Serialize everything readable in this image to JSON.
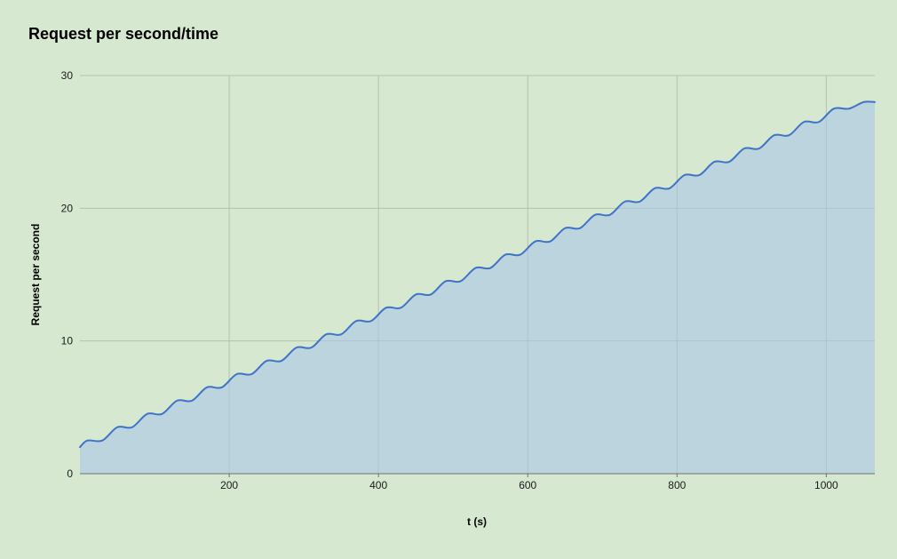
{
  "page": {
    "background": "#d7e8d0"
  },
  "chart_data": {
    "type": "area",
    "title": "Request per second/time",
    "xlabel": "t (s)",
    "ylabel": "Request per second",
    "xlim": [
      0,
      1065
    ],
    "ylim": [
      0,
      30
    ],
    "x_ticks": [
      200,
      400,
      600,
      800,
      1000
    ],
    "y_ticks": [
      0,
      10,
      20,
      30
    ],
    "grid": true,
    "legend": "none",
    "smooth": true,
    "line_color": "#3f73c8",
    "fill_color": "#a9c6e8",
    "fill_opacity": 0.6,
    "grid_color": "#b4bfb2",
    "axis_color": "#6f6f6f",
    "label_color": "#1a1a1a",
    "points": [
      [
        0,
        2
      ],
      [
        10,
        2.5
      ],
      [
        30,
        2.5
      ],
      [
        50,
        3.5
      ],
      [
        70,
        3.5
      ],
      [
        90,
        4.5
      ],
      [
        110,
        4.5
      ],
      [
        130,
        5.5
      ],
      [
        150,
        5.5
      ],
      [
        170,
        6.5
      ],
      [
        190,
        6.5
      ],
      [
        210,
        7.5
      ],
      [
        230,
        7.5
      ],
      [
        250,
        8.5
      ],
      [
        270,
        8.5
      ],
      [
        290,
        9.5
      ],
      [
        310,
        9.5
      ],
      [
        330,
        10.5
      ],
      [
        350,
        10.5
      ],
      [
        370,
        11.5
      ],
      [
        390,
        11.5
      ],
      [
        410,
        12.5
      ],
      [
        430,
        12.5
      ],
      [
        450,
        13.5
      ],
      [
        470,
        13.5
      ],
      [
        490,
        14.5
      ],
      [
        510,
        14.5
      ],
      [
        530,
        15.5
      ],
      [
        550,
        15.5
      ],
      [
        570,
        16.5
      ],
      [
        590,
        16.5
      ],
      [
        610,
        17.5
      ],
      [
        630,
        17.5
      ],
      [
        650,
        18.5
      ],
      [
        670,
        18.5
      ],
      [
        690,
        19.5
      ],
      [
        710,
        19.5
      ],
      [
        730,
        20.5
      ],
      [
        750,
        20.5
      ],
      [
        770,
        21.5
      ],
      [
        790,
        21.5
      ],
      [
        810,
        22.5
      ],
      [
        830,
        22.5
      ],
      [
        850,
        23.5
      ],
      [
        870,
        23.5
      ],
      [
        890,
        24.5
      ],
      [
        910,
        24.5
      ],
      [
        930,
        25.5
      ],
      [
        950,
        25.5
      ],
      [
        970,
        26.5
      ],
      [
        990,
        26.5
      ],
      [
        1010,
        27.5
      ],
      [
        1030,
        27.5
      ],
      [
        1050,
        28
      ],
      [
        1065,
        28
      ]
    ]
  }
}
